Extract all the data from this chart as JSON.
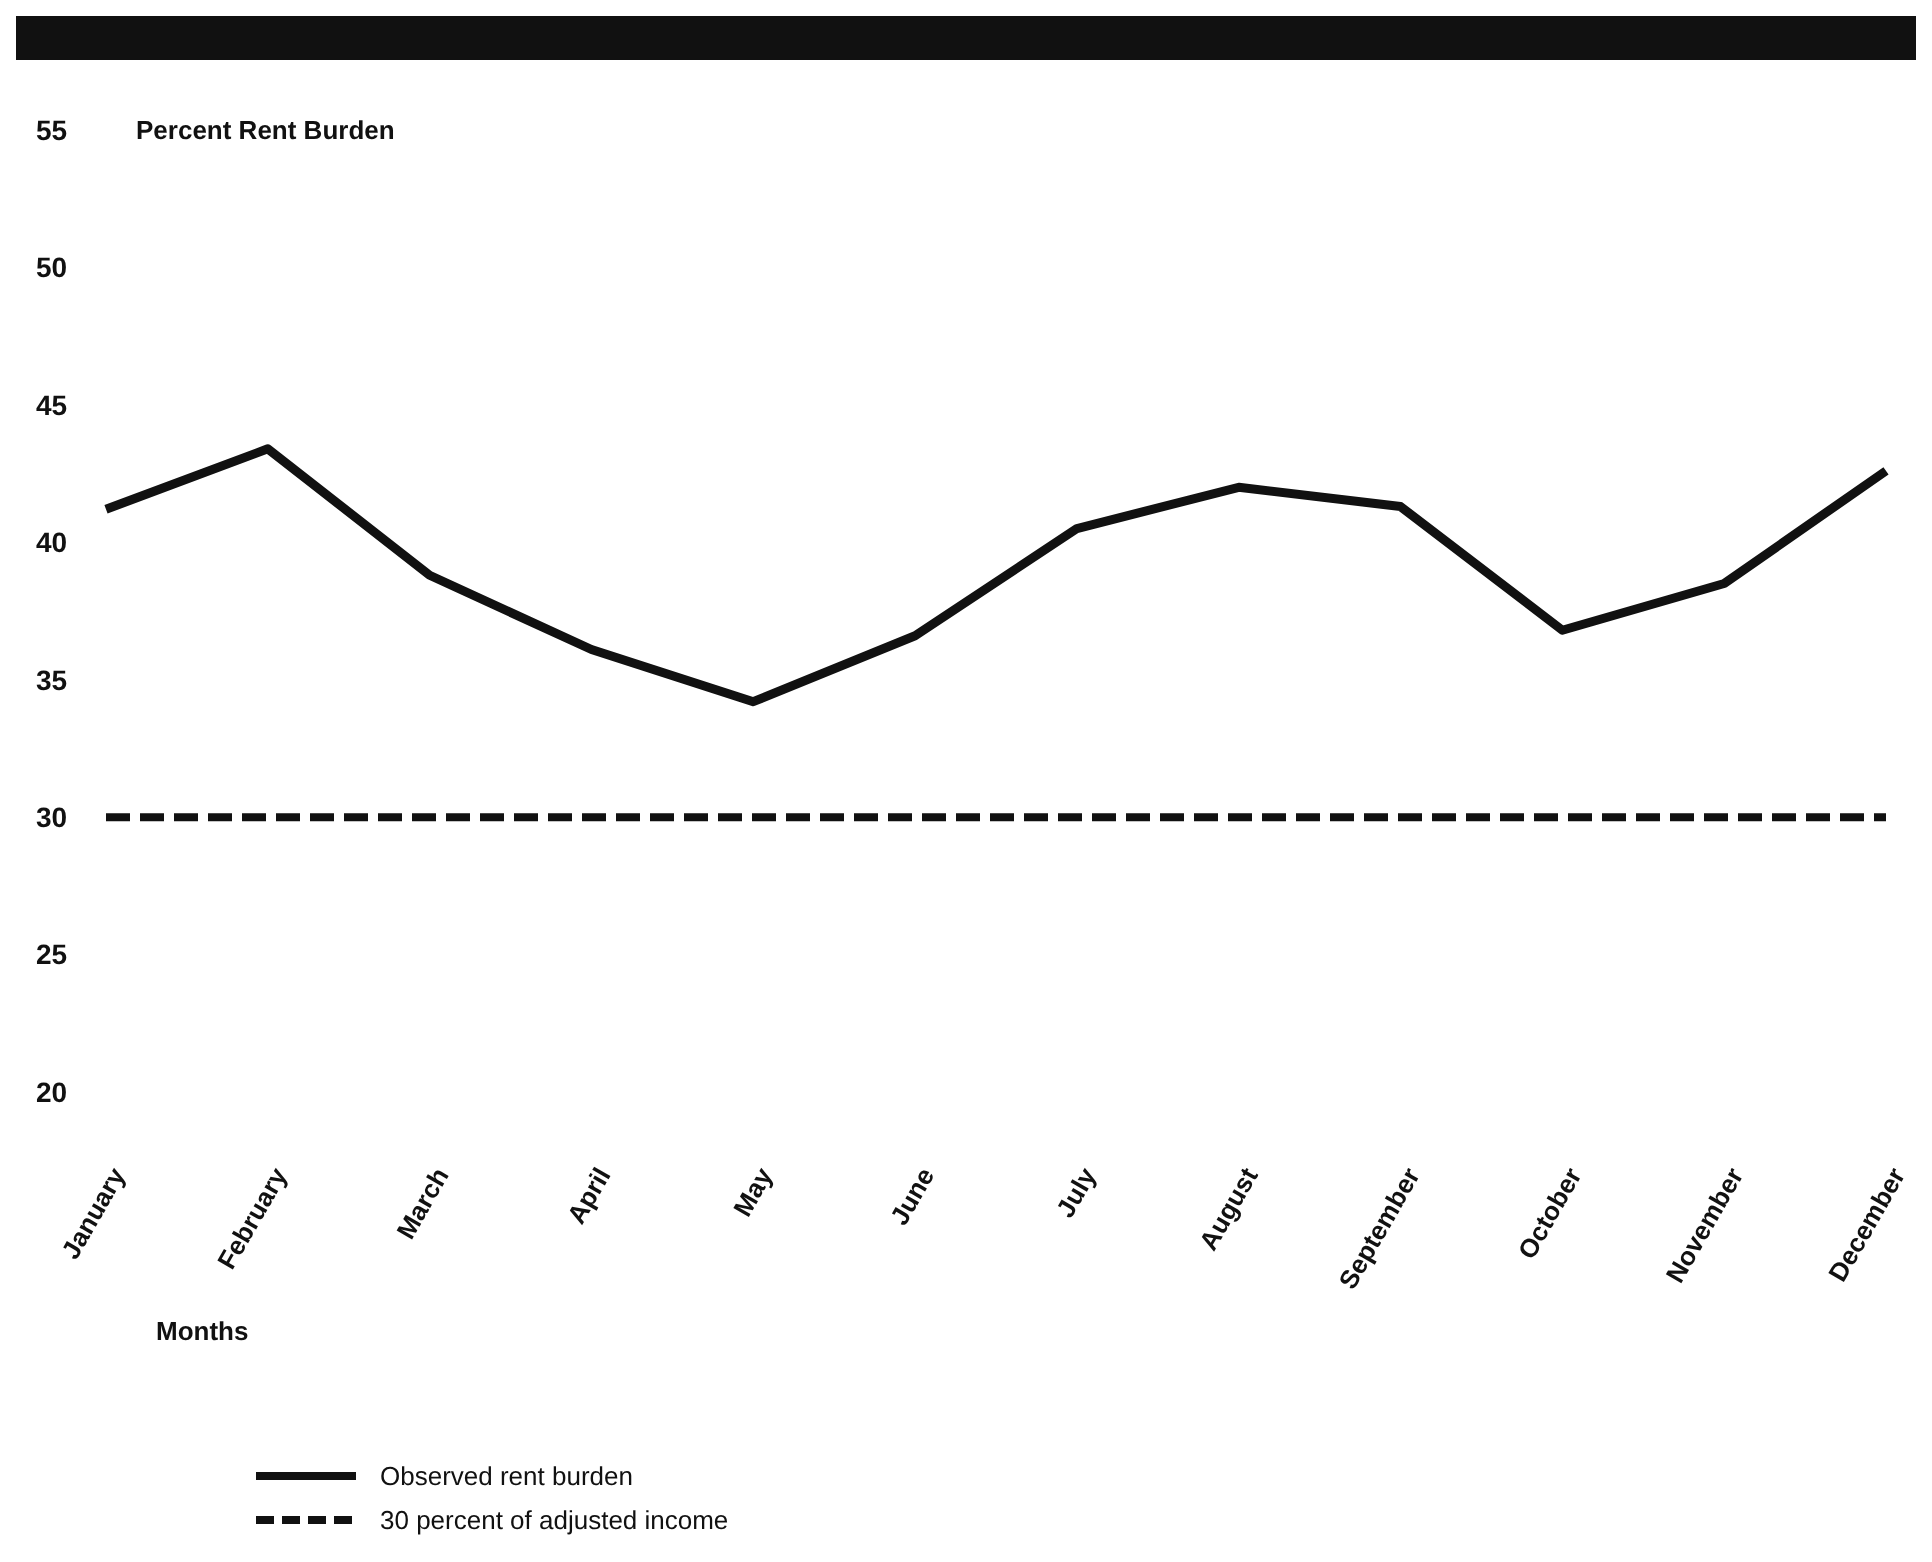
{
  "chart_data": {
    "type": "line",
    "ylabel": "Percent Rent Burden",
    "xlabel": "Months",
    "categories": [
      "January",
      "February",
      "March",
      "April",
      "May",
      "June",
      "July",
      "August",
      "September",
      "October",
      "November",
      "December"
    ],
    "series": [
      {
        "name": "Observed rent burden",
        "color": "#111111",
        "line_style": "solid",
        "values": [
          41.2,
          43.4,
          38.8,
          36.1,
          34.2,
          36.6,
          40.5,
          42.0,
          41.3,
          36.8,
          38.5,
          42.6
        ]
      },
      {
        "name": "30 percent of adjusted income",
        "color": "#111111",
        "line_style": "dashed",
        "values": [
          30,
          30,
          30,
          30,
          30,
          30,
          30,
          30,
          30,
          30,
          30,
          30
        ]
      }
    ],
    "ylim": [
      20,
      55
    ],
    "yticks": [
      20,
      25,
      30,
      35,
      40,
      45,
      50,
      55
    ],
    "grid": false,
    "legend": "bottom"
  }
}
